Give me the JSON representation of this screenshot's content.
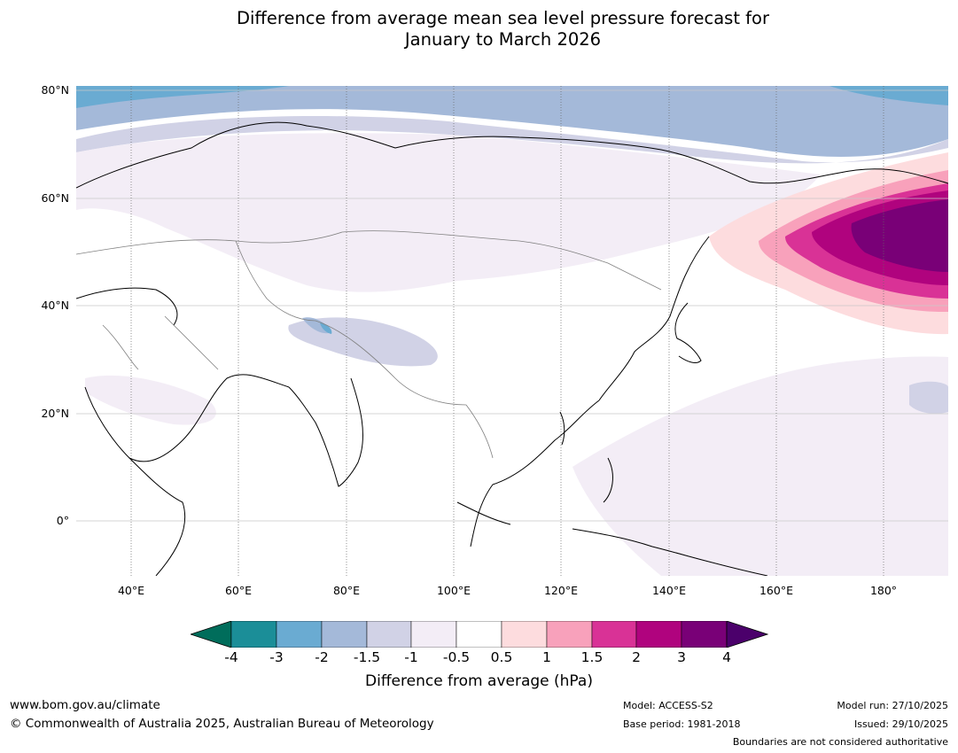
{
  "title": {
    "line1": "Difference from average mean sea level pressure forecast for",
    "line2": "January to March 2026"
  },
  "map": {
    "lat_labels": [
      "80°N",
      "60°N",
      "40°N",
      "20°N",
      "0°"
    ],
    "lon_labels": [
      "40°E",
      "60°E",
      "80°E",
      "100°E",
      "120°E",
      "140°E",
      "160°E",
      "180°"
    ]
  },
  "colorbar": {
    "label": "Difference from average (hPa)",
    "ticks": [
      "-4",
      "-3",
      "-2",
      "-1.5",
      "-1",
      "-0.5",
      "0.5",
      "1",
      "1.5",
      "2",
      "3",
      "4"
    ],
    "colors": {
      "below_-4": "#006d5b",
      "-4_-3": "#1b8e98",
      "-3_-2": "#6aabd2",
      "-2_-1.5": "#a4b9d9",
      "-1.5_-1": "#d1d2e6",
      "-1_-0.5": "#f3edf6",
      "-0.5_0.5": "#ffffff",
      "0.5_1": "#fddcde",
      "1_1.5": "#f8a1bb",
      "1.5_2": "#d93296",
      "2_3": "#b0037e",
      "3_4": "#790077",
      "above_4": "#4b006b"
    }
  },
  "footer": {
    "website": "www.bom.gov.au/climate",
    "copyright": "© Commonwealth of Australia 2025, Australian Bureau of Meteorology",
    "model": "Model: ACCESS-S2",
    "base_period": "Base period: 1981-2018",
    "model_run": "Model run: 27/10/2025",
    "issued": "Issued: 29/10/2025",
    "disclaimer": "Boundaries are not considered authoritative"
  }
}
